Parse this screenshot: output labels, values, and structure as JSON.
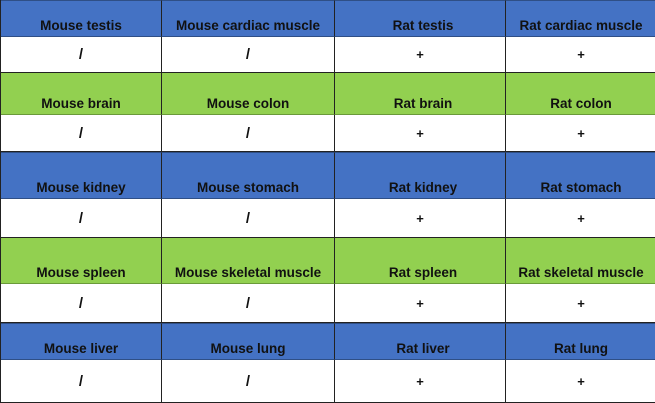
{
  "table": {
    "sections": [
      {
        "band": "blue",
        "headers": [
          "Mouse testis",
          "Mouse cardiac muscle",
          "Rat testis",
          "Rat cardiac muscle"
        ],
        "values": [
          "/",
          "/",
          "+",
          "+"
        ]
      },
      {
        "band": "green",
        "headers": [
          "Mouse brain",
          "Mouse colon",
          "Rat brain",
          "Rat colon"
        ],
        "values": [
          "/",
          "/",
          "+",
          "+"
        ]
      },
      {
        "band": "blue",
        "headers": [
          "Mouse kidney",
          "Mouse stomach",
          "Rat kidney",
          "Rat stomach"
        ],
        "values": [
          "/",
          "/",
          "+",
          "+"
        ]
      },
      {
        "band": "green",
        "headers": [
          "Mouse spleen",
          "Mouse skeletal muscle",
          "Rat spleen",
          "Rat skeletal muscle"
        ],
        "values": [
          "/",
          "/",
          "+",
          "+"
        ]
      },
      {
        "band": "blue",
        "headers": [
          "Mouse liver",
          "Mouse lung",
          "Rat liver",
          "Rat lung"
        ],
        "values": [
          "/",
          "/",
          "+",
          "+"
        ]
      }
    ],
    "colors": {
      "blue": "#4472c4",
      "green": "#92d050",
      "value_row": "#ffffff"
    }
  }
}
